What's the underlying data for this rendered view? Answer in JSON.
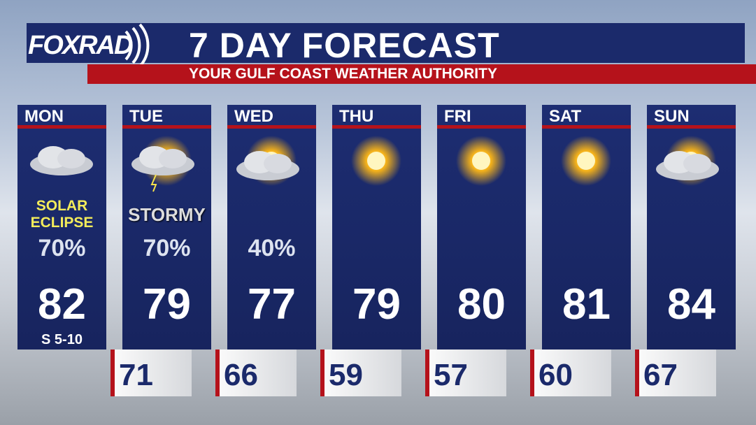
{
  "header": {
    "logo": "FOXRAD",
    "title": "7 DAY FORECAST",
    "subtitle": "YOUR GULF COAST WEATHER AUTHORITY"
  },
  "days": [
    {
      "day": "MON",
      "note": "SOLAR ECLIPSE",
      "precip": "70%",
      "high": 82,
      "wind": "S 5-10"
    },
    {
      "day": "TUE",
      "note": "STORMY",
      "precip": "70%",
      "high": 79
    },
    {
      "day": "WED",
      "precip": "40%",
      "high": 77
    },
    {
      "day": "THU",
      "high": 79
    },
    {
      "day": "FRI",
      "high": 80
    },
    {
      "day": "SAT",
      "high": 81
    },
    {
      "day": "SUN",
      "high": 84
    }
  ],
  "lows": [
    71,
    66,
    59,
    57,
    60,
    67
  ]
}
